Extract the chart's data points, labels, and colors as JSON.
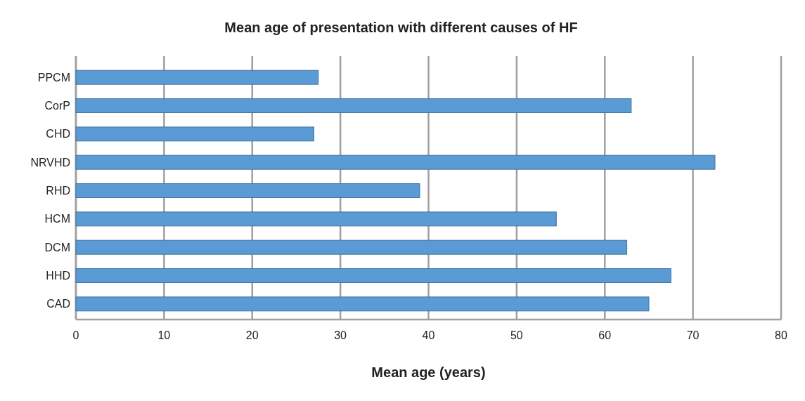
{
  "chart_data": {
    "type": "bar",
    "orientation": "horizontal",
    "title": "Mean age of presentation with different causes of HF",
    "xlabel": "Mean age (years)",
    "categories": [
      "PPCM",
      "CorP",
      "CHD",
      "NRVHD",
      "RHD",
      "HCM",
      "DCM",
      "HHD",
      "CAD"
    ],
    "values": [
      27.5,
      63,
      27,
      72.5,
      39,
      54.5,
      62.5,
      67.5,
      65
    ],
    "color": "#5b9bd5",
    "xlim": [
      0,
      80
    ],
    "xticks": [
      0,
      10,
      20,
      30,
      40,
      50,
      60,
      70,
      80
    ],
    "grid": "x"
  }
}
